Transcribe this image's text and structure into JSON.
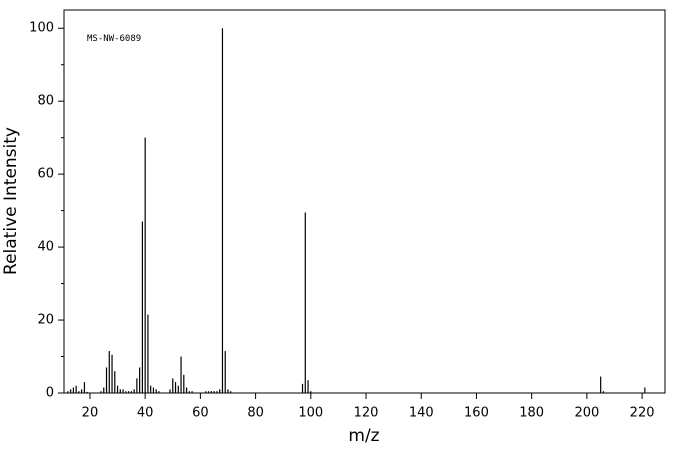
{
  "chart_data": {
    "type": "stem",
    "annotation": "MS-NW-6089",
    "xlabel": "m/z",
    "ylabel": "Relative Intensity",
    "color": "#000000",
    "x": [
      12,
      13,
      14,
      15,
      16,
      17,
      18,
      19,
      24,
      25,
      26,
      27,
      28,
      29,
      30,
      31,
      32,
      33,
      34,
      35,
      36,
      37,
      38,
      39,
      40,
      41,
      42,
      43,
      44,
      45,
      49,
      50,
      51,
      52,
      53,
      54,
      55,
      56,
      57,
      62,
      63,
      64,
      65,
      66,
      67,
      68,
      69,
      70,
      71,
      97,
      98,
      99,
      100,
      205,
      206,
      221
    ],
    "values": [
      0.5,
      1,
      1.5,
      2,
      0.5,
      1,
      3,
      0.3,
      0.5,
      1.5,
      7,
      11.5,
      10.5,
      6,
      2,
      1,
      1,
      0.5,
      0.5,
      0.5,
      1,
      4,
      7,
      47,
      70,
      21.5,
      2,
      1.5,
      1,
      0.5,
      1,
      4,
      3,
      2,
      10,
      5,
      1.5,
      0.5,
      0.5,
      0.5,
      0.5,
      0.5,
      0.5,
      0.5,
      1,
      100,
      11.5,
      1,
      0.5,
      2.5,
      49.5,
      3.5,
      0.5,
      4.5,
      0.5,
      1.5
    ],
    "xlim": [
      10.6,
      228.3
    ],
    "ylim": [
      0,
      105
    ],
    "xticks": [
      20,
      40,
      60,
      80,
      100,
      120,
      140,
      160,
      180,
      200,
      220
    ],
    "yticks": [
      0,
      20,
      40,
      60,
      80,
      100
    ],
    "yminor_ticks": [
      10,
      30,
      50,
      70,
      90
    ]
  }
}
